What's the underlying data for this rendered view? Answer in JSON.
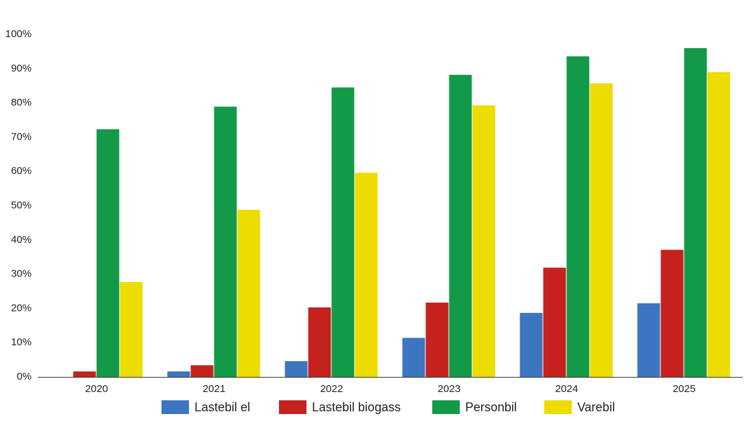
{
  "chart_data": {
    "type": "bar",
    "categories": [
      "2020",
      "2021",
      "2022",
      "2023",
      "2024",
      "2025"
    ],
    "series": [
      {
        "name": "Lastebil el",
        "color": "#3d76c0",
        "values": [
          0,
          1.6,
          4.6,
          11.4,
          18.7,
          21.5
        ]
      },
      {
        "name": "Lastebil biogass",
        "color": "#c5221f",
        "values": [
          1.6,
          3.4,
          20.3,
          21.7,
          31.9,
          37.1
        ]
      },
      {
        "name": "Personbil",
        "color": "#139a48",
        "values": [
          72.3,
          78.9,
          84.5,
          88.2,
          93.6,
          96
        ]
      },
      {
        "name": "Varebil",
        "color": "#ecdc00",
        "values": [
          27.7,
          48.8,
          59.6,
          79.3,
          85.7,
          89.0
        ]
      }
    ],
    "ylim": [
      0,
      100
    ],
    "yticks": [
      {
        "value": 0,
        "label": "0%"
      },
      {
        "value": 10,
        "label": "10%"
      },
      {
        "value": 20,
        "label": "20%"
      },
      {
        "value": 30,
        "label": "30%"
      },
      {
        "value": 40,
        "label": "40%"
      },
      {
        "value": 50,
        "label": "50%"
      },
      {
        "value": 60,
        "label": "60%"
      },
      {
        "value": 70,
        "label": "70%"
      },
      {
        "value": 80,
        "label": "80%"
      },
      {
        "value": 90,
        "label": "90%"
      },
      {
        "value": 100,
        "label": "100%"
      }
    ],
    "legend": "bottom"
  }
}
